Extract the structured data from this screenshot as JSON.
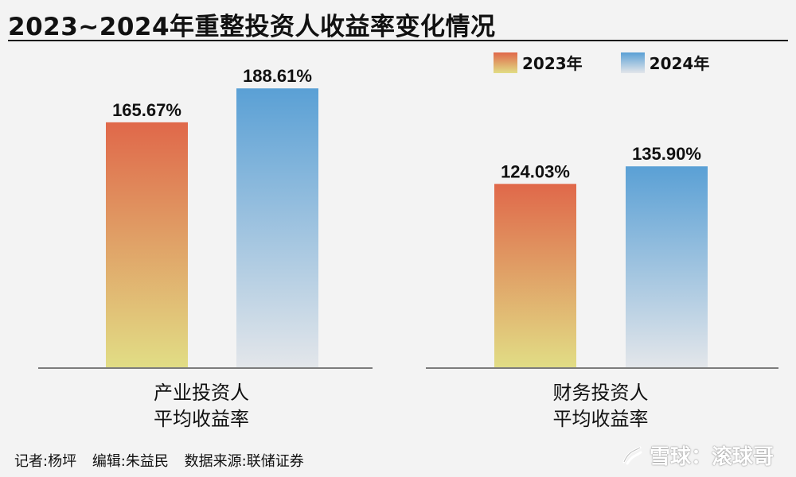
{
  "title": "2023~2024年重整投资人收益率变化情况",
  "legend": [
    {
      "label": "2023年",
      "color_top": "#e0684a",
      "color_bottom": "#e1dd85"
    },
    {
      "label": "2024年",
      "color_top": "#5aa0d5",
      "color_bottom": "#e3e6ea"
    }
  ],
  "chart_data": [
    {
      "type": "bar",
      "category_label": [
        "产业投资人",
        "平均收益率"
      ],
      "series": [
        {
          "name": "2023年",
          "value": 165.67,
          "label": "165.67%"
        },
        {
          "name": "2024年",
          "value": 188.61,
          "label": "188.61%"
        }
      ],
      "ylim": [
        0,
        200
      ],
      "grid": false
    },
    {
      "type": "bar",
      "category_label": [
        "财务投资人",
        "平均收益率"
      ],
      "series": [
        {
          "name": "2023年",
          "value": 124.03,
          "label": "124.03%"
        },
        {
          "name": "2024年",
          "value": 135.9,
          "label": "135.90%"
        }
      ],
      "ylim": [
        0,
        200
      ],
      "grid": false
    }
  ],
  "footer": {
    "reporter": "记者:杨坪",
    "editor": "编辑:朱益民",
    "source": "数据来源:联储证券"
  },
  "watermark": "雪球：滚球哥"
}
